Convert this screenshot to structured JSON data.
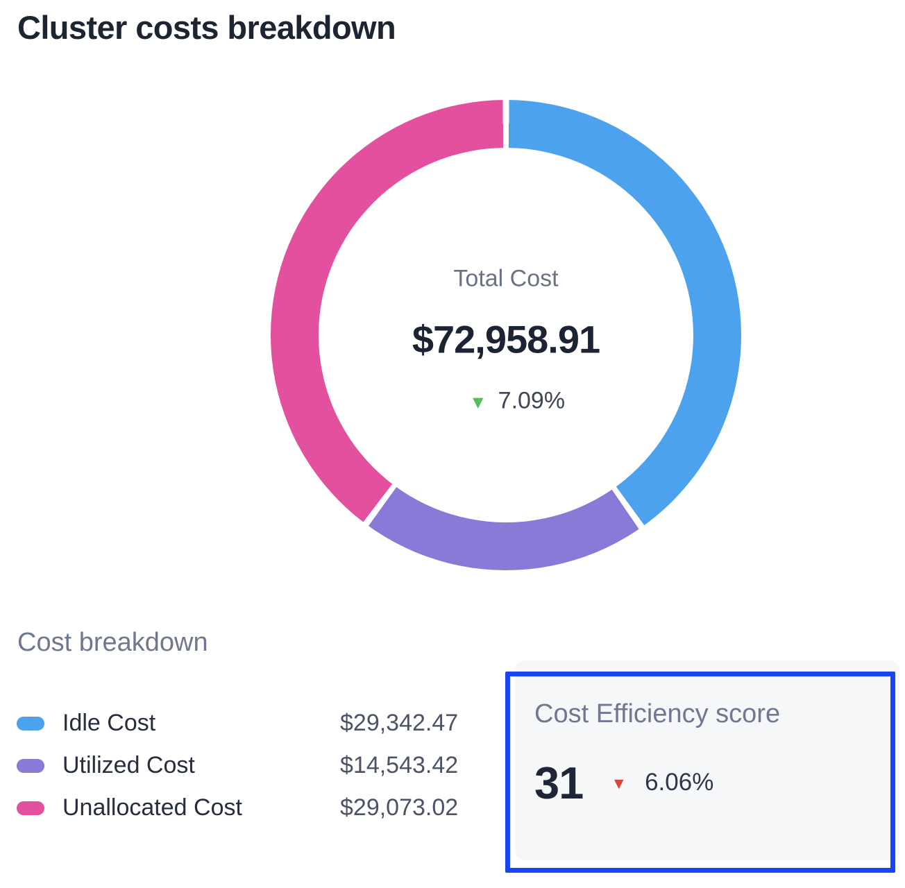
{
  "title": "Cluster costs breakdown",
  "chart_data": {
    "type": "pie",
    "donut": true,
    "title": "Cluster costs breakdown",
    "start_angle_deg": 0,
    "clockwise": true,
    "gap_deg": 1.6,
    "total": 72958.91,
    "segments": [
      {
        "label": "Idle Cost",
        "value": 29342.47,
        "display": "$29,342.47",
        "percent": 40.2,
        "color": "#4DA2ED"
      },
      {
        "label": "Utilized Cost",
        "value": 14543.42,
        "display": "$14,543.42",
        "percent": 19.9,
        "color": "#8A7AD8"
      },
      {
        "label": "Unallocated Cost",
        "value": 29073.02,
        "display": "$29,073.02",
        "percent": 39.9,
        "color": "#E2509E"
      }
    ],
    "center": {
      "label": "Total Cost",
      "value": "$72,958.91",
      "delta": "7.09%",
      "delta_direction": "down",
      "delta_color": "#55BC5D"
    },
    "legend_position": "bottom-left"
  },
  "breakdown": {
    "heading": "Cost breakdown"
  },
  "efficiency": {
    "heading": "Cost Efficiency score",
    "score": "31",
    "delta": "6.06%",
    "delta_direction": "down",
    "delta_color": "#D9473C",
    "highlight_border_color": "#1745F0",
    "card_background": "#F6F7F9"
  },
  "icons": {
    "down_triangle": "▼"
  }
}
